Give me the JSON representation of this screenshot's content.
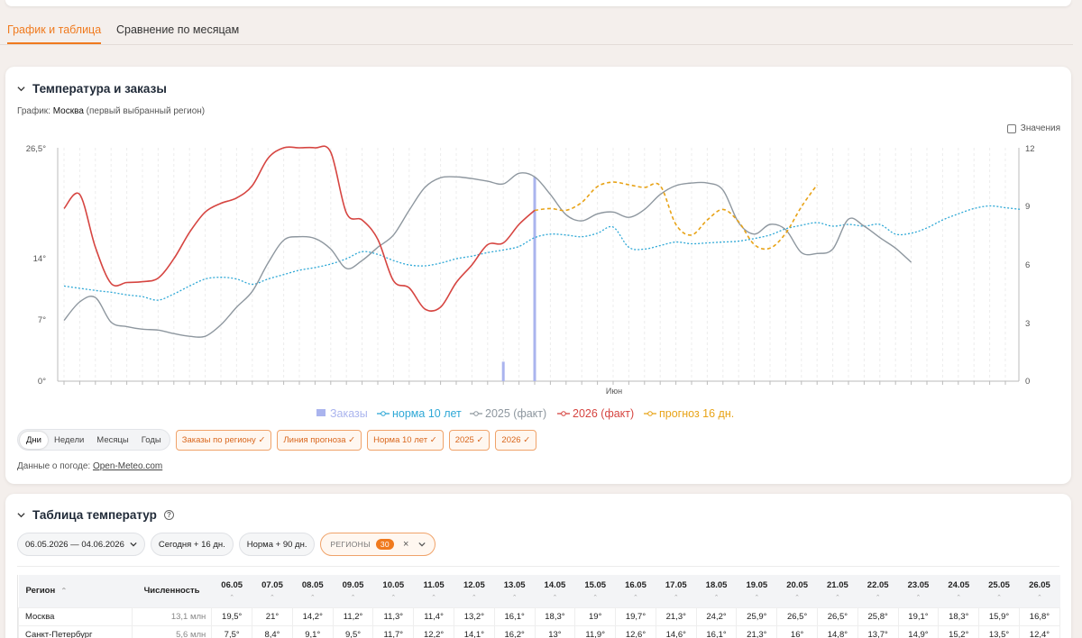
{
  "tabs": [
    {
      "label": "График и таблица",
      "active": true
    },
    {
      "label": "Сравнение по месяцам",
      "active": false
    }
  ],
  "chart_card": {
    "title": "Температура и заказы",
    "subtitle_prefix": "График:",
    "subtitle_region": "Москва",
    "subtitle_suffix": "(первый выбранный регион)",
    "values_label": "Значения",
    "period_buttons": [
      "Дни",
      "Недели",
      "Месяцы",
      "Годы"
    ],
    "period_selected": "Дни",
    "filter_chips": [
      "Заказы по региону ✓",
      "Линия прогноза ✓",
      "Норма 10 лет ✓",
      "2025 ✓",
      "2026 ✓"
    ],
    "source_prefix": "Данные о погоде:",
    "source_link": "Open-Meteo.com"
  },
  "chart_data": {
    "type": "line",
    "title": "",
    "y_left": {
      "label": "",
      "ticks": [
        "0°",
        "7°",
        "14°",
        "26,5°"
      ],
      "range": [
        0,
        26.5
      ]
    },
    "y_right": {
      "label": "",
      "ticks": [
        "0",
        "3",
        "6",
        "9",
        "12"
      ],
      "range": [
        0,
        12
      ]
    },
    "x_label_month": "Июн",
    "legend": [
      {
        "name": "Заказы",
        "color": "#aab4ee"
      },
      {
        "name": "норма 10 лет",
        "color": "#2ea8d6"
      },
      {
        "name": "2025 (факт)",
        "color": "#8e979f"
      },
      {
        "name": "2026 (факт)",
        "color": "#d64541"
      },
      {
        "name": "прогноз 16 дн.",
        "color": "#e8a317"
      }
    ],
    "series": {
      "norm": [
        [
          0,
          10.8
        ],
        [
          2,
          10.3
        ],
        [
          3,
          10.1
        ],
        [
          4,
          9.8
        ],
        [
          5,
          9.6
        ],
        [
          6,
          9.2
        ],
        [
          7,
          9.9
        ],
        [
          8,
          10.8
        ],
        [
          9,
          11.6
        ],
        [
          10,
          11.8
        ],
        [
          11,
          11.6
        ],
        [
          12,
          11
        ],
        [
          13,
          11.6
        ],
        [
          14,
          12.1
        ],
        [
          15,
          12.6
        ],
        [
          16,
          12.9
        ],
        [
          17,
          13.3
        ],
        [
          18,
          13.9
        ],
        [
          19,
          14.7
        ],
        [
          20,
          14.4
        ],
        [
          21,
          13.7
        ],
        [
          22,
          13.2
        ],
        [
          23,
          13.1
        ],
        [
          24,
          13.4
        ],
        [
          25,
          13.9
        ],
        [
          26,
          14.2
        ],
        [
          27,
          14.6
        ],
        [
          28,
          14.9
        ],
        [
          29,
          15.3
        ],
        [
          30,
          16.3
        ],
        [
          31,
          16.7
        ],
        [
          32,
          16.6
        ],
        [
          33,
          16.4
        ],
        [
          34,
          16.8
        ],
        [
          35,
          17.5
        ],
        [
          36,
          15.2
        ],
        [
          37,
          15
        ],
        [
          38,
          15.4
        ],
        [
          39,
          15.8
        ],
        [
          40,
          15.6
        ],
        [
          41,
          15.7
        ],
        [
          42,
          15.8
        ],
        [
          43,
          15.9
        ],
        [
          44,
          16.2
        ],
        [
          45,
          16.6
        ],
        [
          46,
          17.3
        ],
        [
          47,
          17.7
        ],
        [
          48,
          18
        ],
        [
          49,
          17.6
        ],
        [
          50,
          17.8
        ],
        [
          51,
          17.6
        ],
        [
          52,
          17.8
        ],
        [
          53,
          16.7
        ],
        [
          54,
          16.8
        ],
        [
          55,
          17.4
        ],
        [
          56,
          18.3
        ],
        [
          57,
          19
        ],
        [
          58,
          19.6
        ],
        [
          59,
          19.9
        ],
        [
          60,
          19.7
        ],
        [
          61,
          19.5
        ]
      ],
      "y2025": [
        [
          0,
          6.9
        ],
        [
          1,
          9
        ],
        [
          2,
          9.5
        ],
        [
          3,
          6.7
        ],
        [
          4,
          6.2
        ],
        [
          5,
          5.9
        ],
        [
          6,
          5.8
        ],
        [
          7,
          5.4
        ],
        [
          8,
          5.1
        ],
        [
          9,
          5.1
        ],
        [
          10,
          6.4
        ],
        [
          11,
          8.4
        ],
        [
          12,
          10.2
        ],
        [
          13,
          13.4
        ],
        [
          14,
          16
        ],
        [
          15,
          16.4
        ],
        [
          16,
          16.2
        ],
        [
          17,
          15
        ],
        [
          18,
          12.8
        ],
        [
          19,
          13.7
        ],
        [
          20,
          15.2
        ],
        [
          21,
          16.6
        ],
        [
          22,
          19.4
        ],
        [
          23,
          22
        ],
        [
          24,
          23.1
        ],
        [
          25,
          23.2
        ],
        [
          26,
          23
        ],
        [
          27,
          22.7
        ],
        [
          28,
          22.4
        ],
        [
          29,
          23.6
        ],
        [
          30,
          23.2
        ],
        [
          31,
          21.2
        ],
        [
          32,
          18.9
        ],
        [
          33,
          18.2
        ],
        [
          34,
          19
        ],
        [
          35,
          19.2
        ],
        [
          36,
          18.6
        ],
        [
          37,
          19.5
        ],
        [
          38,
          21.2
        ],
        [
          39,
          22.2
        ],
        [
          40,
          22.5
        ],
        [
          41,
          22.5
        ],
        [
          42,
          21.7
        ],
        [
          43,
          18
        ],
        [
          44,
          16.7
        ],
        [
          45,
          17.8
        ],
        [
          46,
          17.2
        ],
        [
          47,
          14.6
        ],
        [
          48,
          14.5
        ],
        [
          49,
          15
        ],
        [
          50,
          18.4
        ],
        [
          51,
          17.6
        ],
        [
          52,
          16.3
        ],
        [
          53,
          15.1
        ],
        [
          54,
          13.5
        ]
      ],
      "y2026": [
        [
          0,
          19.6
        ],
        [
          1,
          21.2
        ],
        [
          2,
          15.2
        ],
        [
          3,
          11.1
        ],
        [
          4,
          11.2
        ],
        [
          5,
          11.3
        ],
        [
          6,
          11.7
        ],
        [
          7,
          13.9
        ],
        [
          8,
          16.9
        ],
        [
          9,
          19.2
        ],
        [
          10,
          20.2
        ],
        [
          11,
          20.8
        ],
        [
          12,
          22.2
        ],
        [
          13,
          25.3
        ],
        [
          14,
          26.5
        ],
        [
          15,
          26.5
        ],
        [
          16,
          26.5
        ],
        [
          17,
          26
        ],
        [
          18,
          19.1
        ],
        [
          19,
          18.3
        ],
        [
          20,
          16.1
        ],
        [
          21,
          11.4
        ],
        [
          22,
          10.6
        ],
        [
          23,
          8.2
        ],
        [
          24,
          8.4
        ],
        [
          25,
          11.2
        ],
        [
          26,
          13.2
        ],
        [
          27,
          15.5
        ],
        [
          28,
          15.7
        ],
        [
          29,
          17.8
        ],
        [
          30,
          19.4
        ]
      ],
      "forecast": [
        [
          30,
          19.4
        ],
        [
          31,
          19.6
        ],
        [
          32,
          19.4
        ],
        [
          33,
          20.3
        ],
        [
          34,
          22.1
        ],
        [
          35,
          22.6
        ],
        [
          36,
          22.3
        ],
        [
          37,
          22
        ],
        [
          38,
          22.2
        ],
        [
          39,
          17.8
        ],
        [
          40,
          16.6
        ],
        [
          41,
          18.3
        ],
        [
          42,
          19.5
        ],
        [
          43,
          18.1
        ],
        [
          44,
          15.5
        ],
        [
          45,
          15.1
        ],
        [
          46,
          16.8
        ],
        [
          47,
          19.8
        ],
        [
          48,
          22.3
        ]
      ],
      "orders": [
        [
          28,
          1
        ],
        [
          30,
          10.5
        ]
      ]
    }
  },
  "table_card": {
    "title": "Таблица температур",
    "date_range": "06.05.2026 — 04.06.2026",
    "btn_today": "Сегодня + 16 дн.",
    "btn_norm": "Норма + 90 дн.",
    "regions_label": "РЕГИОНЫ",
    "regions_count": "30",
    "columns": [
      "Регион",
      "Численность",
      "06.05",
      "07.05",
      "08.05",
      "09.05",
      "10.05",
      "11.05",
      "12.05",
      "13.05",
      "14.05",
      "15.05",
      "16.05",
      "17.05",
      "18.05",
      "19.05",
      "20.05",
      "21.05",
      "22.05",
      "23.05",
      "24.05",
      "25.05",
      "26.05"
    ],
    "rows": [
      [
        "Москва",
        "13,1 млн",
        "19,5°",
        "21°",
        "14,2°",
        "11,2°",
        "11,3°",
        "11,4°",
        "13,2°",
        "16,1°",
        "18,3°",
        "19°",
        "19,7°",
        "21,3°",
        "24,2°",
        "25,9°",
        "26,5°",
        "26,5°",
        "25,8°",
        "19,1°",
        "18,3°",
        "15,9°",
        "16,8°"
      ],
      [
        "Санкт-Петербург",
        "5,6 млн",
        "7,5°",
        "8,4°",
        "9,1°",
        "9,5°",
        "11,7°",
        "12,2°",
        "14,1°",
        "16,2°",
        "13°",
        "11,9°",
        "12,6°",
        "14,6°",
        "16,1°",
        "21,3°",
        "16°",
        "14,8°",
        "13,7°",
        "14,9°",
        "15,2°",
        "13,5°",
        "12,4°"
      ]
    ]
  }
}
